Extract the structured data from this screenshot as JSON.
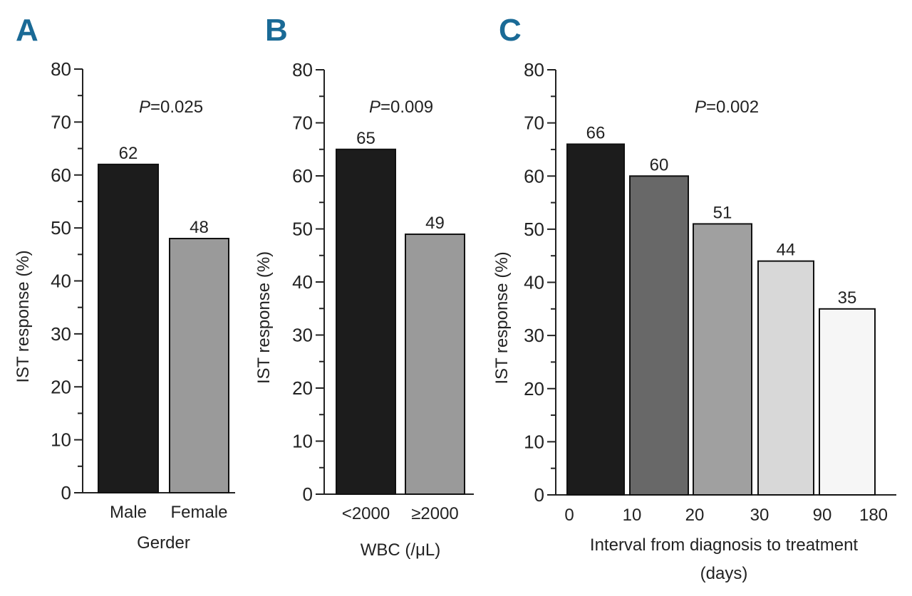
{
  "chart_data": [
    {
      "type": "bar",
      "panel": "A",
      "title": "",
      "pvalue_label": "P",
      "pvalue_text": "=0.025",
      "ylabel": "IST response (%)",
      "xlabel": "Gerder",
      "ylim": [
        0,
        80
      ],
      "yticks": [
        0,
        10,
        20,
        30,
        40,
        50,
        60,
        70,
        80
      ],
      "categories": [
        "Male",
        "Female"
      ],
      "values": [
        62,
        48
      ],
      "data_labels": [
        "62",
        "48"
      ],
      "colors": [
        "#1c1c1c",
        "#9a9a9a"
      ]
    },
    {
      "type": "bar",
      "panel": "B",
      "title": "",
      "pvalue_label": "P",
      "pvalue_text": "=0.009",
      "ylabel": "IST response (%)",
      "xlabel": "WBC (/μL)",
      "ylim": [
        0,
        80
      ],
      "yticks": [
        0,
        10,
        20,
        30,
        40,
        50,
        60,
        70,
        80
      ],
      "categories": [
        "<2000",
        "≥2000"
      ],
      "values": [
        65,
        49
      ],
      "data_labels": [
        "65",
        "49"
      ],
      "colors": [
        "#1c1c1c",
        "#9a9a9a"
      ]
    },
    {
      "type": "bar",
      "panel": "C",
      "title": "",
      "pvalue_label": "P",
      "pvalue_text": "=0.002",
      "ylabel": "IST response (%)",
      "xlabel": "Interval from diagnosis to treatment",
      "xlabel2": "(days)",
      "ylim": [
        0,
        80
      ],
      "yticks": [
        0,
        10,
        20,
        30,
        40,
        50,
        60,
        70,
        80
      ],
      "bin_edges": [
        "0",
        "10",
        "20",
        "30",
        "90",
        "180"
      ],
      "categories": [
        "0-10",
        "10-20",
        "20-30",
        "30-90",
        "90-180"
      ],
      "values": [
        66,
        60,
        51,
        44,
        35
      ],
      "data_labels": [
        "66",
        "60",
        "51",
        "44",
        "35"
      ],
      "colors": [
        "#1c1c1c",
        "#686868",
        "#a0a0a0",
        "#d8d8d8",
        "#f6f6f6"
      ]
    }
  ]
}
